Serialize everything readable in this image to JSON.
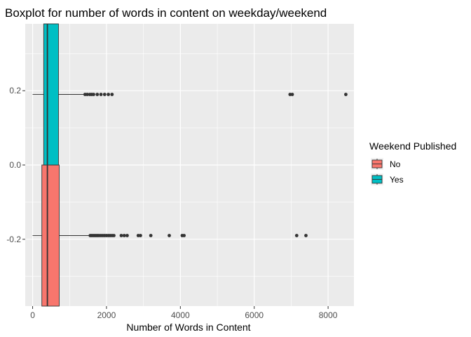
{
  "chart_data": {
    "type": "boxplot",
    "orientation": "horizontal",
    "title": "Boxplot for number of words in content on weekday/weekend",
    "xlabel": "Number of Words in Content",
    "ylabel": "",
    "xlim": [
      -200,
      8700
    ],
    "ylim": [
      -0.38,
      0.38
    ],
    "x_ticks": [
      0,
      2000,
      4000,
      6000,
      8000
    ],
    "x_tick_labels": [
      "0",
      "2000",
      "4000",
      "6000",
      "8000"
    ],
    "y_ticks": [
      -0.2,
      0.0,
      0.2
    ],
    "y_tick_labels": [
      "-0.2",
      "0.0",
      "0.2"
    ],
    "grid": true,
    "legend": {
      "title": "Weekend Published",
      "position": "right",
      "entries": [
        {
          "label": "No",
          "color": "#F8766D"
        },
        {
          "label": "Yes",
          "color": "#00BFC4"
        }
      ]
    },
    "series": [
      {
        "name": "No",
        "color": "#F8766D",
        "y_center": -0.19,
        "y_low": -0.38,
        "y_high": 0.0,
        "whisker_low": 0,
        "q1": 250,
        "median": 400,
        "q3": 720,
        "whisker_high": 1520,
        "outliers": [
          1560,
          1600,
          1640,
          1680,
          1720,
          1760,
          1800,
          1850,
          1900,
          1950,
          2000,
          2050,
          2100,
          2150,
          2200,
          2400,
          2480,
          2560,
          2860,
          2920,
          3200,
          3700,
          4050,
          4100,
          7150,
          7400
        ]
      },
      {
        "name": "Yes",
        "color": "#00BFC4",
        "y_center": 0.19,
        "y_low": 0.0,
        "y_high": 0.38,
        "whisker_low": 0,
        "q1": 300,
        "median": 400,
        "q3": 700,
        "whisker_high": 1400,
        "outliers": [
          1420,
          1480,
          1550,
          1600,
          1650,
          1750,
          1850,
          1950,
          2050,
          2150,
          6970,
          7030,
          8480
        ]
      }
    ]
  },
  "colors": {
    "panel_background": "#EBEBEB",
    "grid_major": "#FFFFFF",
    "outline": "#333333"
  }
}
